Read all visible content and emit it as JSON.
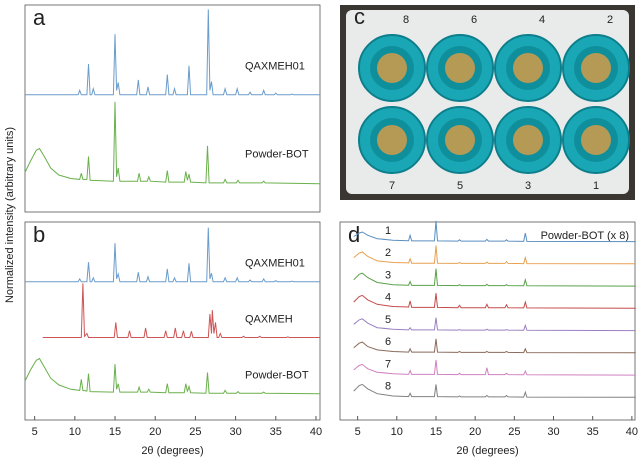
{
  "ylabel": "Normalized intensity (arbitrary units)",
  "photo": {
    "panel_label": "c",
    "tube_labels": [
      "8",
      "6",
      "4",
      "2",
      "7",
      "5",
      "3",
      "1"
    ]
  },
  "chart_data": [
    {
      "type": "line",
      "panel_label": "a",
      "xlim": [
        3.8,
        40.5
      ],
      "ylim": [
        -0.3,
        2.05
      ],
      "series": [
        {
          "name": "QAXMEH01",
          "color": "#6a9ccc",
          "x": [
            3.8,
            10.4,
            10.6,
            10.8,
            11.5,
            11.7,
            11.9,
            12.1,
            12.3,
            12.5,
            14.8,
            15.0,
            15.2,
            15.4,
            15.6,
            17.7,
            17.9,
            18.1,
            18.9,
            19.1,
            19.3,
            21.3,
            21.5,
            21.7,
            22.2,
            22.4,
            22.6,
            24.0,
            24.2,
            24.4,
            26.4,
            26.6,
            26.8,
            27.0,
            27.2,
            28.5,
            28.7,
            28.9,
            30.0,
            30.2,
            30.4,
            31.6,
            31.8,
            32.0,
            33.3,
            33.5,
            33.7,
            34.8,
            35.0,
            35.2,
            36.8,
            37.0,
            37.2,
            40.5
          ],
          "values": [
            0.03,
            0.03,
            0.08,
            0.03,
            0.03,
            0.38,
            0.03,
            0.03,
            0.1,
            0.03,
            0.03,
            0.72,
            0.08,
            0.17,
            0.03,
            0.03,
            0.2,
            0.03,
            0.03,
            0.12,
            0.03,
            0.03,
            0.26,
            0.03,
            0.03,
            0.1,
            0.03,
            0.03,
            0.36,
            0.03,
            0.03,
            1.0,
            0.08,
            0.18,
            0.03,
            0.03,
            0.1,
            0.03,
            0.03,
            0.1,
            0.03,
            0.03,
            0.06,
            0.03,
            0.03,
            0.08,
            0.03,
            0.03,
            0.05,
            0.03,
            0.03,
            0.04,
            0.03,
            0.03
          ]
        },
        {
          "name": "Powder-BOT",
          "color": "#6ab04c",
          "x": [
            3.8,
            4.5,
            5.2,
            5.6,
            6.2,
            7,
            8,
            9.5,
            10.6,
            10.8,
            11.0,
            11.5,
            11.7,
            11.9,
            14.8,
            15.0,
            15.2,
            15.4,
            15.6,
            17.8,
            18.0,
            18.2,
            19.0,
            19.2,
            19.4,
            21.3,
            21.5,
            21.7,
            23.6,
            23.8,
            24.0,
            24.2,
            24.4,
            26.3,
            26.5,
            26.7,
            28.5,
            28.7,
            28.9,
            30.1,
            30.3,
            30.5,
            33.3,
            33.5,
            33.7,
            40.5
          ],
          "values": [
            0.15,
            0.28,
            0.4,
            0.42,
            0.33,
            0.2,
            0.12,
            0.08,
            0.07,
            0.14,
            0.07,
            0.07,
            0.33,
            0.06,
            0.05,
            0.95,
            0.1,
            0.2,
            0.05,
            0.05,
            0.14,
            0.05,
            0.05,
            0.1,
            0.05,
            0.04,
            0.17,
            0.04,
            0.04,
            0.16,
            0.06,
            0.13,
            0.04,
            0.03,
            0.45,
            0.03,
            0.03,
            0.07,
            0.03,
            0.03,
            0.06,
            0.03,
            0.03,
            0.05,
            0.03,
            0.02
          ]
        }
      ]
    },
    {
      "type": "line",
      "panel_label": "b",
      "xlim": [
        3.8,
        40.5
      ],
      "ylim": [
        -0.45,
        3.1
      ],
      "xticks": [
        5,
        10,
        15,
        20,
        25,
        30,
        35,
        40
      ],
      "xlabel": "2θ (degrees)",
      "series": [
        {
          "name": "QAXMEH01",
          "color": "#6a9ccc",
          "x": [
            3.8,
            10.4,
            10.6,
            10.8,
            11.5,
            11.7,
            11.9,
            12.1,
            12.3,
            12.5,
            14.8,
            15.0,
            15.2,
            15.4,
            15.6,
            17.7,
            17.9,
            18.1,
            18.9,
            19.1,
            19.3,
            21.3,
            21.5,
            21.7,
            22.2,
            22.4,
            22.6,
            24.0,
            24.2,
            24.4,
            26.4,
            26.6,
            26.8,
            27.0,
            27.2,
            28.5,
            28.7,
            28.9,
            30.0,
            30.2,
            30.4,
            31.6,
            31.8,
            32.0,
            33.3,
            33.5,
            33.7,
            34.8,
            35.0,
            35.2,
            36.8,
            37.0,
            37.2,
            40.5
          ],
          "values": [
            0.03,
            0.03,
            0.08,
            0.03,
            0.03,
            0.38,
            0.03,
            0.03,
            0.1,
            0.03,
            0.03,
            0.72,
            0.08,
            0.17,
            0.03,
            0.03,
            0.2,
            0.03,
            0.03,
            0.12,
            0.03,
            0.03,
            0.26,
            0.03,
            0.03,
            0.1,
            0.03,
            0.03,
            0.36,
            0.03,
            0.03,
            1.0,
            0.08,
            0.18,
            0.03,
            0.03,
            0.1,
            0.03,
            0.03,
            0.1,
            0.03,
            0.03,
            0.06,
            0.03,
            0.03,
            0.08,
            0.03,
            0.03,
            0.05,
            0.03,
            0.03,
            0.04,
            0.03,
            0.03
          ]
        },
        {
          "name": "QAXMEH",
          "color": "#cc5555",
          "x": [
            6.0,
            10.8,
            11.0,
            11.2,
            11.5,
            11.7,
            14.9,
            15.1,
            15.3,
            16.6,
            16.8,
            17.0,
            18.6,
            18.8,
            19.0,
            21.1,
            21.3,
            21.5,
            22.3,
            22.5,
            22.7,
            23.3,
            23.5,
            23.7,
            24.3,
            24.5,
            24.7,
            26.6,
            26.8,
            27.0,
            27.1,
            27.3,
            27.5,
            27.7,
            27.9,
            28.1,
            28.3,
            30.8,
            31.0,
            31.2,
            32.8,
            33.0,
            33.2,
            36.3,
            36.5,
            36.7,
            40.5
          ],
          "values": [
            0.03,
            0.03,
            1.0,
            0.05,
            0.1,
            0.03,
            0.03,
            0.3,
            0.03,
            0.03,
            0.15,
            0.03,
            0.03,
            0.2,
            0.03,
            0.03,
            0.15,
            0.03,
            0.03,
            0.2,
            0.03,
            0.03,
            0.15,
            0.03,
            0.03,
            0.14,
            0.03,
            0.03,
            0.45,
            0.1,
            0.52,
            0.1,
            0.3,
            0.03,
            0.03,
            0.1,
            0.03,
            0.03,
            0.05,
            0.03,
            0.03,
            0.05,
            0.03,
            0.03,
            0.04,
            0.03,
            0.03
          ]
        },
        {
          "name": "Powder-BOT",
          "color": "#6ab04c",
          "x": [
            3.8,
            4.5,
            5.2,
            5.6,
            6.2,
            7,
            8,
            9.5,
            10.6,
            10.8,
            11.0,
            11.5,
            11.7,
            11.9,
            14.8,
            15.0,
            15.2,
            15.4,
            15.6,
            17.8,
            18.0,
            18.2,
            19.0,
            19.2,
            19.4,
            21.3,
            21.5,
            21.7,
            23.6,
            23.8,
            24.0,
            24.2,
            24.4,
            26.3,
            26.5,
            26.7,
            28.5,
            28.7,
            28.9,
            30.1,
            30.3,
            30.5,
            33.3,
            33.5,
            33.7,
            40.5
          ],
          "values": [
            0.25,
            0.45,
            0.62,
            0.65,
            0.5,
            0.3,
            0.18,
            0.1,
            0.08,
            0.28,
            0.08,
            0.07,
            0.38,
            0.06,
            0.05,
            0.55,
            0.1,
            0.2,
            0.05,
            0.05,
            0.14,
            0.05,
            0.05,
            0.1,
            0.05,
            0.04,
            0.2,
            0.04,
            0.04,
            0.2,
            0.06,
            0.15,
            0.04,
            0.03,
            0.4,
            0.03,
            0.03,
            0.08,
            0.03,
            0.03,
            0.06,
            0.03,
            0.03,
            0.05,
            0.03,
            0.02
          ]
        }
      ]
    },
    {
      "type": "line",
      "panel_label": "d",
      "xlim": [
        2.75,
        40.4
      ],
      "ylim": [
        -1.0,
        7.9
      ],
      "xticks": [
        5,
        10,
        15,
        20,
        25,
        30,
        35,
        40
      ],
      "xlabel": "2θ (degrees)",
      "annotation": "Powder-BOT (x 8)",
      "series": [
        {
          "name": "1",
          "color": "#5b8fc0",
          "x": [
            4.5,
            5.2,
            5.6,
            6.3,
            7.5,
            9.5,
            11.5,
            11.7,
            11.9,
            14.8,
            15.0,
            15.2,
            17.8,
            18.0,
            18.2,
            21.3,
            21.5,
            21.7,
            23.8,
            24.0,
            24.2,
            26.2,
            26.4,
            26.6,
            40.5
          ],
          "values": [
            0.25,
            0.4,
            0.45,
            0.3,
            0.15,
            0.08,
            0.06,
            0.3,
            0.05,
            0.05,
            0.95,
            0.05,
            0.04,
            0.1,
            0.04,
            0.04,
            0.12,
            0.04,
            0.04,
            0.1,
            0.04,
            0.03,
            0.4,
            0.03,
            0.02
          ]
        },
        {
          "name": "2",
          "color": "#e8a050",
          "x": [
            4.5,
            5.2,
            5.6,
            6.3,
            7.5,
            9.5,
            11.5,
            11.7,
            11.9,
            14.8,
            15.0,
            15.2,
            17.8,
            18.0,
            18.2,
            21.3,
            21.5,
            21.7,
            23.8,
            24.0,
            24.2,
            26.2,
            26.4,
            26.6,
            40.5
          ],
          "values": [
            0.3,
            0.5,
            0.55,
            0.35,
            0.15,
            0.08,
            0.06,
            0.25,
            0.05,
            0.05,
            0.85,
            0.05,
            0.04,
            0.08,
            0.04,
            0.04,
            0.1,
            0.04,
            0.04,
            0.12,
            0.04,
            0.03,
            0.3,
            0.03,
            0.02
          ]
        },
        {
          "name": "3",
          "color": "#5aa04a",
          "x": [
            4.5,
            5.2,
            5.6,
            6.3,
            7.5,
            9.5,
            11.5,
            11.7,
            11.9,
            14.8,
            15.0,
            15.2,
            17.8,
            18.0,
            18.2,
            21.3,
            21.5,
            21.7,
            23.8,
            24.0,
            24.2,
            26.2,
            26.4,
            26.6,
            40.5
          ],
          "values": [
            0.3,
            0.55,
            0.6,
            0.4,
            0.18,
            0.08,
            0.06,
            0.22,
            0.05,
            0.05,
            0.8,
            0.05,
            0.04,
            0.08,
            0.04,
            0.04,
            0.1,
            0.04,
            0.04,
            0.08,
            0.04,
            0.03,
            0.3,
            0.03,
            0.02
          ]
        },
        {
          "name": "4",
          "color": "#c44a4a",
          "x": [
            4.5,
            5.2,
            5.6,
            6.3,
            7.5,
            9.5,
            11.5,
            11.7,
            11.9,
            14.8,
            15.0,
            15.2,
            17.8,
            18.0,
            18.2,
            21.3,
            21.5,
            21.7,
            23.8,
            24.0,
            24.2,
            26.2,
            26.4,
            26.6,
            40.5
          ],
          "values": [
            0.3,
            0.55,
            0.6,
            0.4,
            0.2,
            0.1,
            0.08,
            0.35,
            0.06,
            0.06,
            0.7,
            0.06,
            0.05,
            0.15,
            0.05,
            0.05,
            0.2,
            0.05,
            0.05,
            0.18,
            0.05,
            0.04,
            0.3,
            0.04,
            0.02
          ]
        },
        {
          "name": "5",
          "color": "#9a80c0",
          "x": [
            4.5,
            5.2,
            5.6,
            6.3,
            7.5,
            9.5,
            11.5,
            11.7,
            11.9,
            14.8,
            15.0,
            15.2,
            17.8,
            18.0,
            18.2,
            21.3,
            21.5,
            21.7,
            23.8,
            24.0,
            24.2,
            26.2,
            26.4,
            26.6,
            40.5
          ],
          "values": [
            0.3,
            0.5,
            0.55,
            0.35,
            0.15,
            0.08,
            0.05,
            0.15,
            0.05,
            0.05,
            0.6,
            0.05,
            0.04,
            0.06,
            0.04,
            0.04,
            0.08,
            0.04,
            0.04,
            0.06,
            0.04,
            0.03,
            0.25,
            0.03,
            0.02
          ]
        },
        {
          "name": "6",
          "color": "#8a6a5a",
          "x": [
            4.5,
            5.2,
            5.6,
            6.3,
            7.5,
            9.5,
            11.5,
            11.7,
            11.9,
            14.8,
            15.0,
            15.2,
            17.8,
            18.0,
            18.2,
            21.3,
            21.5,
            21.7,
            23.8,
            24.0,
            24.2,
            26.2,
            26.4,
            26.6,
            40.5
          ],
          "values": [
            0.25,
            0.45,
            0.5,
            0.3,
            0.15,
            0.08,
            0.05,
            0.2,
            0.05,
            0.05,
            0.65,
            0.05,
            0.04,
            0.08,
            0.04,
            0.04,
            0.08,
            0.04,
            0.04,
            0.08,
            0.04,
            0.03,
            0.2,
            0.03,
            0.02
          ]
        },
        {
          "name": "7",
          "color": "#d080c0",
          "x": [
            4.5,
            5.2,
            5.6,
            6.3,
            7.5,
            9.5,
            11.5,
            11.7,
            11.9,
            14.8,
            15.0,
            15.2,
            17.8,
            18.0,
            18.2,
            21.3,
            21.5,
            21.7,
            23.8,
            24.0,
            24.2,
            26.2,
            26.4,
            26.6,
            40.5
          ],
          "values": [
            0.25,
            0.45,
            0.5,
            0.3,
            0.15,
            0.08,
            0.05,
            0.22,
            0.05,
            0.05,
            0.7,
            0.05,
            0.04,
            0.1,
            0.04,
            0.04,
            0.35,
            0.04,
            0.04,
            0.1,
            0.04,
            0.03,
            0.2,
            0.03,
            0.02
          ]
        },
        {
          "name": "8",
          "color": "#808080",
          "x": [
            4.5,
            5.2,
            5.6,
            6.3,
            7.5,
            9.5,
            11.5,
            11.7,
            11.9,
            14.8,
            15.0,
            15.2,
            17.8,
            18.0,
            18.2,
            21.3,
            21.5,
            21.7,
            23.8,
            24.0,
            24.2,
            26.2,
            26.4,
            26.6,
            40.5
          ],
          "values": [
            0.3,
            0.55,
            0.6,
            0.4,
            0.18,
            0.08,
            0.05,
            0.2,
            0.05,
            0.05,
            0.6,
            0.05,
            0.04,
            0.08,
            0.04,
            0.04,
            0.1,
            0.04,
            0.04,
            0.1,
            0.04,
            0.03,
            0.25,
            0.03,
            0.02
          ]
        }
      ]
    }
  ]
}
